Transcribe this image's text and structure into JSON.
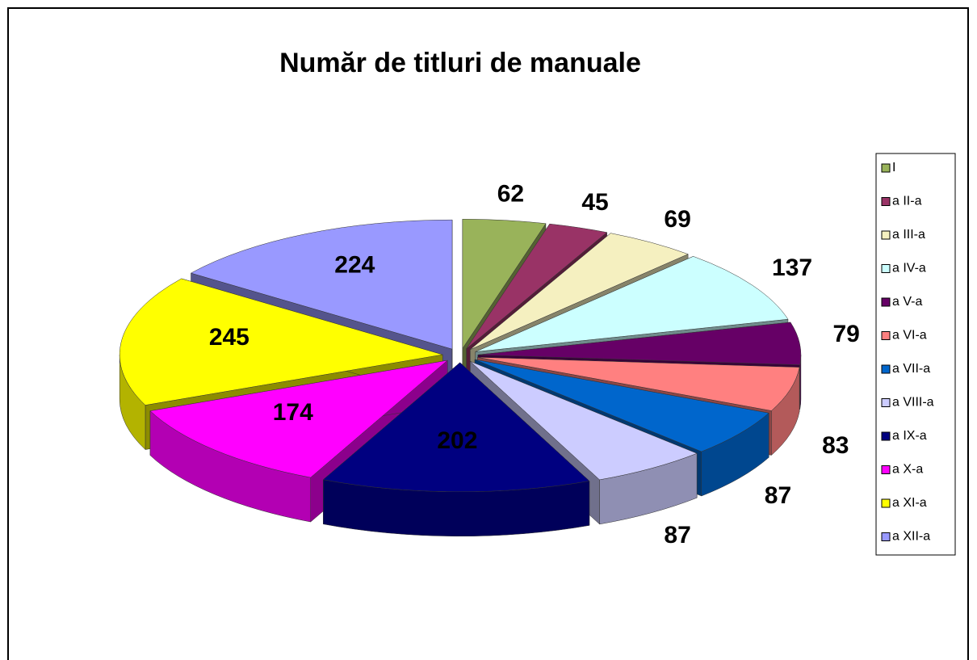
{
  "chart_data": {
    "type": "pie3d",
    "title": "Număr de titluri de manuale",
    "categories": [
      "I",
      "a II-a",
      "a III-a",
      "a IV-a",
      "a V-a",
      "a VI-a",
      "a VII-a",
      "a VIII-a",
      "a IX-a",
      "a X-a",
      "a XI-a",
      "a XII-a"
    ],
    "values": [
      62,
      45,
      69,
      137,
      79,
      83,
      87,
      87,
      202,
      174,
      245,
      224
    ],
    "colors": [
      "#99b35a",
      "#993366",
      "#f5f0c0",
      "#ccffff",
      "#660066",
      "#ff8080",
      "#0066cc",
      "#ccccff",
      "#000080",
      "#ff00ff",
      "#ffff00",
      "#9999ff"
    ],
    "legend": "right"
  }
}
